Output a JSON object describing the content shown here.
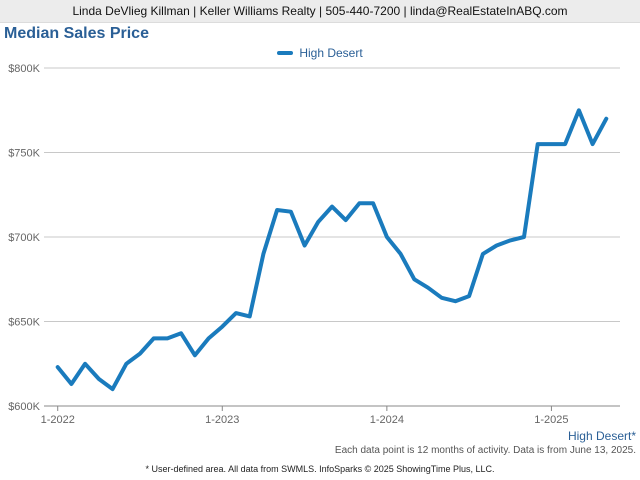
{
  "header": {
    "contact": "Linda DeVlieg Killman | Keller Williams Realty | 505-440-7200 | linda@RealEstateInABQ.com"
  },
  "footer": {
    "area_label": "High Desert*",
    "data_note": "Each data point is 12 months of activity. Data is from June 13, 2025.",
    "source": "* User-defined area. All data from SWMLS. InfoSparks © 2025 ShowingTime Plus, LLC."
  },
  "chart_data": {
    "type": "line",
    "title": "Median Sales Price",
    "xlabel": "",
    "ylabel": "",
    "ylim": [
      600000,
      800000
    ],
    "yticks": [
      {
        "value": 600000,
        "label": "$600K"
      },
      {
        "value": 650000,
        "label": "$650K"
      },
      {
        "value": 700000,
        "label": "$700K"
      },
      {
        "value": 750000,
        "label": "$750K"
      },
      {
        "value": 800000,
        "label": "$800K"
      }
    ],
    "xticks": [
      {
        "value": "2022-01",
        "label": "1-2022"
      },
      {
        "value": "2023-01",
        "label": "1-2023"
      },
      {
        "value": "2024-01",
        "label": "1-2024"
      },
      {
        "value": "2025-01",
        "label": "1-2025"
      }
    ],
    "xrange": [
      "2022-01",
      "2025-05"
    ],
    "grid": true,
    "legend_position": "top-center",
    "series": [
      {
        "name": "High Desert",
        "color": "#1a7bbd",
        "x": [
          "2022-01",
          "2022-02",
          "2022-03",
          "2022-04",
          "2022-05",
          "2022-06",
          "2022-07",
          "2022-08",
          "2022-09",
          "2022-10",
          "2022-11",
          "2022-12",
          "2023-01",
          "2023-02",
          "2023-03",
          "2023-04",
          "2023-05",
          "2023-06",
          "2023-07",
          "2023-08",
          "2023-09",
          "2023-10",
          "2023-11",
          "2023-12",
          "2024-01",
          "2024-02",
          "2024-03",
          "2024-04",
          "2024-05",
          "2024-06",
          "2024-07",
          "2024-08",
          "2024-09",
          "2024-10",
          "2024-11",
          "2024-12",
          "2025-01",
          "2025-02",
          "2025-03",
          "2025-04",
          "2025-05"
        ],
        "values": [
          623000,
          613000,
          625000,
          616000,
          610000,
          625000,
          631000,
          640000,
          640000,
          643000,
          630000,
          640000,
          647000,
          655000,
          653000,
          690000,
          716000,
          715000,
          695000,
          709000,
          718000,
          710000,
          720000,
          720000,
          700000,
          690000,
          675000,
          670000,
          664000,
          662000,
          665000,
          690000,
          695000,
          698000,
          700000,
          755000,
          755000,
          755000,
          775000,
          755000,
          770000
        ]
      }
    ]
  }
}
